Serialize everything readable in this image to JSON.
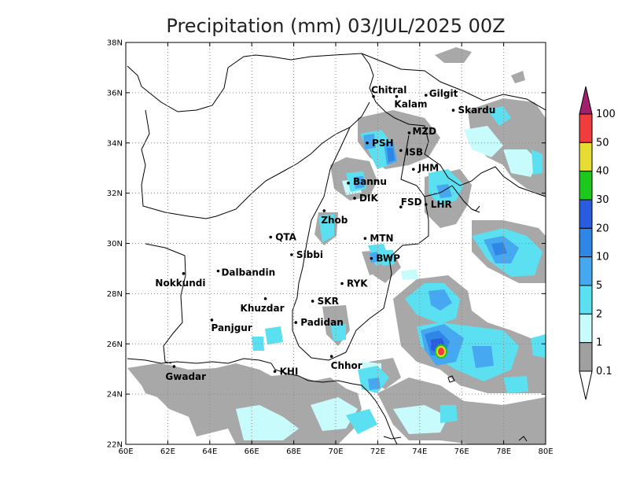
{
  "title": "Precipitation (mm) 03/JUL/2025 00Z",
  "axes": {
    "lat_labels": [
      "22N",
      "24N",
      "26N",
      "28N",
      "30N",
      "32N",
      "34N",
      "36N",
      "38N"
    ],
    "lon_labels": [
      "60E",
      "62E",
      "64E",
      "66E",
      "68E",
      "70E",
      "72E",
      "74E",
      "76E",
      "78E",
      "80E"
    ],
    "lat_range": [
      22,
      38
    ],
    "lon_range": [
      60,
      80
    ]
  },
  "colorbar": {
    "levels": [
      "0.1",
      "1",
      "2",
      "5",
      "10",
      "20",
      "30",
      "40",
      "50",
      "100"
    ],
    "colors": [
      "#a0a0a0",
      "#c8fcfc",
      "#5ae0f0",
      "#46a8f0",
      "#2e86e6",
      "#2a5ce0",
      "#1cc81c",
      "#e6dc32",
      "#f03c3c",
      "#a0206e"
    ]
  },
  "cities": [
    {
      "name": "Chitral",
      "lon": 71.8,
      "lat": 35.85
    },
    {
      "name": "Gilgit",
      "lon": 74.3,
      "lat": 35.9
    },
    {
      "name": "Kalam",
      "lon": 72.9,
      "lat": 35.85
    },
    {
      "name": "Skardu",
      "lon": 75.6,
      "lat": 35.3
    },
    {
      "name": "MZD",
      "lon": 73.5,
      "lat": 34.4
    },
    {
      "name": "PSH",
      "lon": 71.5,
      "lat": 34.0
    },
    {
      "name": "ISB",
      "lon": 73.1,
      "lat": 33.7
    },
    {
      "name": "JHM",
      "lon": 73.7,
      "lat": 32.95
    },
    {
      "name": "Bannu",
      "lon": 70.6,
      "lat": 32.4
    },
    {
      "name": "DIK",
      "lon": 70.9,
      "lat": 31.8
    },
    {
      "name": "FSD",
      "lon": 73.1,
      "lat": 31.45
    },
    {
      "name": "LHR",
      "lon": 74.3,
      "lat": 31.55
    },
    {
      "name": "Zhob",
      "lon": 69.45,
      "lat": 31.3
    },
    {
      "name": "QTA",
      "lon": 66.9,
      "lat": 30.25
    },
    {
      "name": "MTN",
      "lon": 71.4,
      "lat": 30.2
    },
    {
      "name": "Sibbi",
      "lon": 67.9,
      "lat": 29.55
    },
    {
      "name": "BWP",
      "lon": 71.7,
      "lat": 29.4
    },
    {
      "name": "Dalbandin",
      "lon": 64.4,
      "lat": 28.9
    },
    {
      "name": "Nokkundi",
      "lon": 62.75,
      "lat": 28.8
    },
    {
      "name": "RYK",
      "lon": 70.3,
      "lat": 28.4
    },
    {
      "name": "SKR",
      "lon": 68.9,
      "lat": 27.7
    },
    {
      "name": "Khuzdar",
      "lon": 66.65,
      "lat": 27.8
    },
    {
      "name": "Padidan",
      "lon": 68.1,
      "lat": 26.85
    },
    {
      "name": "Panjgur",
      "lon": 64.1,
      "lat": 26.95
    },
    {
      "name": "Chhor",
      "lon": 69.8,
      "lat": 25.5
    },
    {
      "name": "KHI",
      "lon": 67.1,
      "lat": 24.9
    },
    {
      "name": "Gwadar",
      "lon": 62.3,
      "lat": 25.1
    }
  ]
}
